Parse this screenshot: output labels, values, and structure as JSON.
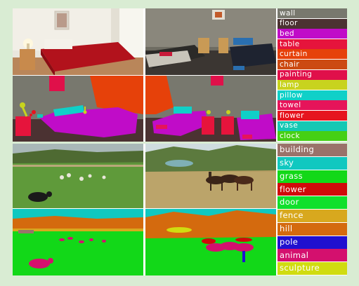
{
  "top_group": {
    "legend": [
      {
        "label": "wall",
        "color": "#78786e"
      },
      {
        "label": "floor",
        "color": "#4b3232"
      },
      {
        "label": "bed",
        "color": "#c00cc8"
      },
      {
        "label": "table",
        "color": "#e6143c"
      },
      {
        "label": "curtain",
        "color": "#e6410a"
      },
      {
        "label": "chair",
        "color": "#cc4a12"
      },
      {
        "label": "painting",
        "color": "#e0104a"
      },
      {
        "label": "lamp",
        "color": "#c8d31e"
      },
      {
        "label": "pillow",
        "color": "#10d0c8"
      },
      {
        "label": "towel",
        "color": "#e6145a"
      },
      {
        "label": "flower",
        "color": "#e6141e"
      },
      {
        "label": "vase",
        "color": "#14c8b4"
      },
      {
        "label": "clock",
        "color": "#45d014"
      }
    ]
  },
  "bottom_group": {
    "legend": [
      {
        "label": "building",
        "color": "#9a726a"
      },
      {
        "label": "sky",
        "color": "#10c8c0"
      },
      {
        "label": "grass",
        "color": "#12d818"
      },
      {
        "label": "flower",
        "color": "#d00a0a"
      },
      {
        "label": "door",
        "color": "#10e02c"
      },
      {
        "label": "fence",
        "color": "#d8a81e"
      },
      {
        "label": "hill",
        "color": "#d46a0e"
      },
      {
        "label": "pole",
        "color": "#2010d0"
      },
      {
        "label": "animal",
        "color": "#d4106e"
      },
      {
        "label": "sculpture",
        "color": "#d0dc10"
      }
    ]
  }
}
